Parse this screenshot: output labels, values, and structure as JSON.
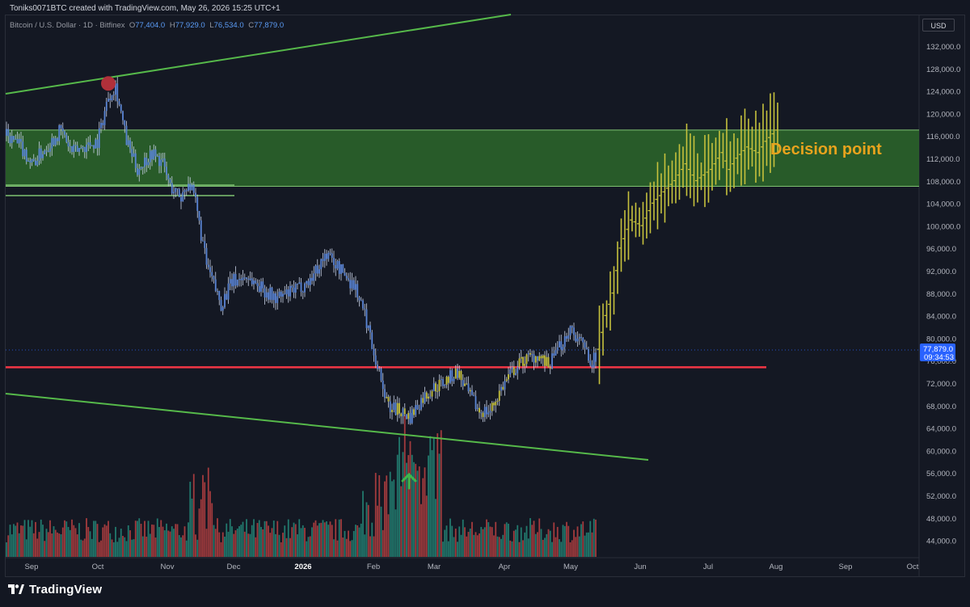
{
  "header": {
    "caption": "Toniks0071BTC created with TradingView.com, May 26, 2026 15:25 UTC+1"
  },
  "legend": {
    "symbol": "Bitcoin / U.S. Dollar · 1D · Bitfinex",
    "o_label": "O",
    "o_value": "77,404.0",
    "h_label": "H",
    "h_value": "77,929.0",
    "l_label": "L",
    "l_value": "76,534.0",
    "c_label": "C",
    "c_value": "77,879.0"
  },
  "currency_button": "USD",
  "brand": {
    "name": "TradingView"
  },
  "colors": {
    "background": "#131722",
    "zone_fill": "#2d6a2b",
    "zone_line": "#7fc272",
    "trendline": "#56b94a",
    "support": "#f23645",
    "history_candles": "#5b86d6",
    "projection_bars": "#c7c23d",
    "volume_up": "#22796d",
    "volume_down": "#a33b3e",
    "marker_red": "#b0303a",
    "arrow_green": "#3fb54b",
    "annotation": "#e8a31d",
    "price_tag": "#2962ff"
  },
  "chart_data": {
    "type": "candlestick",
    "title": "Bitcoin / U.S. Dollar · 1D · Bitfinex",
    "y_axis": {
      "range": [
        40000,
        134000
      ],
      "ticks": [
        "132,000.0",
        "128,000.0",
        "124,000.0",
        "120,000.0",
        "116,000.0",
        "112,000.0",
        "108,000.0",
        "104,000.0",
        "100,000.0",
        "96,000.0",
        "92,000.0",
        "88,000.0",
        "84,000.0",
        "80,000.0",
        "76,000.0",
        "72,000.0",
        "68,000.0",
        "64,000.0",
        "60,000.0",
        "56,000.0",
        "52,000.0",
        "48,000.0",
        "44,000.0"
      ]
    },
    "x_axis": {
      "ticks": [
        {
          "label": "Sep",
          "bold": false
        },
        {
          "label": "Oct",
          "bold": false
        },
        {
          "label": "Nov",
          "bold": false
        },
        {
          "label": "Dec",
          "bold": false
        },
        {
          "label": "2026",
          "bold": true
        },
        {
          "label": "Feb",
          "bold": false
        },
        {
          "label": "Mar",
          "bold": false
        },
        {
          "label": "Apr",
          "bold": false
        },
        {
          "label": "May",
          "bold": false
        },
        {
          "label": "Jun",
          "bold": false
        },
        {
          "label": "Jul",
          "bold": false
        },
        {
          "label": "Aug",
          "bold": false
        },
        {
          "label": "Sep",
          "bold": false
        },
        {
          "label": "Oct",
          "bold": false
        }
      ]
    },
    "history_anchors": [
      [
        0,
        116000
      ],
      [
        8,
        114000
      ],
      [
        14,
        111000
      ],
      [
        22,
        114000
      ],
      [
        30,
        117000
      ],
      [
        36,
        113000
      ],
      [
        42,
        114000
      ],
      [
        50,
        115000
      ],
      [
        56,
        123000
      ],
      [
        60,
        125000
      ],
      [
        66,
        115000
      ],
      [
        72,
        110000
      ],
      [
        80,
        113000
      ],
      [
        86,
        111000
      ],
      [
        90,
        107000
      ],
      [
        96,
        105000
      ],
      [
        100,
        108000
      ],
      [
        104,
        104000
      ],
      [
        110,
        93000
      ],
      [
        118,
        86000
      ],
      [
        124,
        90000
      ],
      [
        132,
        91000
      ],
      [
        140,
        89000
      ],
      [
        148,
        87000
      ],
      [
        156,
        88000
      ],
      [
        166,
        90000
      ],
      [
        176,
        95000
      ],
      [
        184,
        92000
      ],
      [
        192,
        89000
      ],
      [
        198,
        83000
      ],
      [
        204,
        75000
      ],
      [
        210,
        68000
      ],
      [
        216,
        67000
      ],
      [
        222,
        66000
      ],
      [
        228,
        69000
      ],
      [
        234,
        71000
      ],
      [
        240,
        72000
      ],
      [
        248,
        74000
      ],
      [
        254,
        70000
      ],
      [
        260,
        67000
      ],
      [
        266,
        67000
      ],
      [
        272,
        71000
      ],
      [
        278,
        74000
      ],
      [
        284,
        76000
      ],
      [
        292,
        77000
      ],
      [
        298,
        75000
      ],
      [
        302,
        77000
      ],
      [
        310,
        82000
      ],
      [
        316,
        79000
      ],
      [
        322,
        76000
      ],
      [
        324,
        76500
      ]
    ],
    "projection_anchors": [
      [
        326,
        78000
      ],
      [
        330,
        84000
      ],
      [
        334,
        88000
      ],
      [
        338,
        96000
      ],
      [
        344,
        101000
      ],
      [
        350,
        100000
      ],
      [
        356,
        104000
      ],
      [
        362,
        106000
      ],
      [
        368,
        108000
      ],
      [
        374,
        111000
      ],
      [
        380,
        108000
      ],
      [
        388,
        110000
      ],
      [
        394,
        113000
      ],
      [
        398,
        110000
      ],
      [
        402,
        112000
      ],
      [
        408,
        114000
      ],
      [
        414,
        113000
      ],
      [
        418,
        115000
      ],
      [
        424,
        117000
      ]
    ],
    "support_level": 74800,
    "decision_zone": {
      "low": 107000,
      "high": 117000,
      "label": "Decision point"
    },
    "ath_marker_price": 126300,
    "last_price": {
      "value": "77,879.0",
      "countdown": "09:34:53"
    }
  }
}
